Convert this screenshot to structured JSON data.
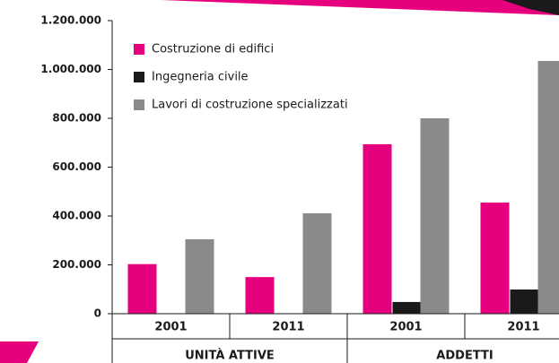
{
  "chart_data": {
    "type": "bar",
    "categories": [
      "2001",
      "2011",
      "2001",
      "2011"
    ],
    "groups": [
      "UNITÀ ATTIVE",
      "ADDETTI"
    ],
    "series": [
      {
        "name": "Costruzione di edifici",
        "color": "#e6007e",
        "values": [
          203000,
          150000,
          694000,
          455000
        ]
      },
      {
        "name": "Ingegneria civile",
        "color": "#1a1a1a",
        "values": [
          0,
          0,
          48000,
          99000
        ]
      },
      {
        "name": "Lavori di costruzione specializzati",
        "color": "#8a8a8a",
        "values": [
          305000,
          411000,
          800000,
          1035000
        ]
      }
    ],
    "ylim": [
      0,
      1200000
    ],
    "yticks": [
      0,
      {
        "value": 200000,
        "label": "200.000"
      },
      {
        "value": 400000,
        "label": "400.000"
      },
      {
        "value": 600000,
        "label": "600.000"
      },
      {
        "value": 800000,
        "label": "800.000"
      },
      {
        "value": 1000000,
        "label": "1.000.000"
      },
      {
        "value": 1200000,
        "label": "1.200.000"
      }
    ],
    "legend": "top-left"
  }
}
